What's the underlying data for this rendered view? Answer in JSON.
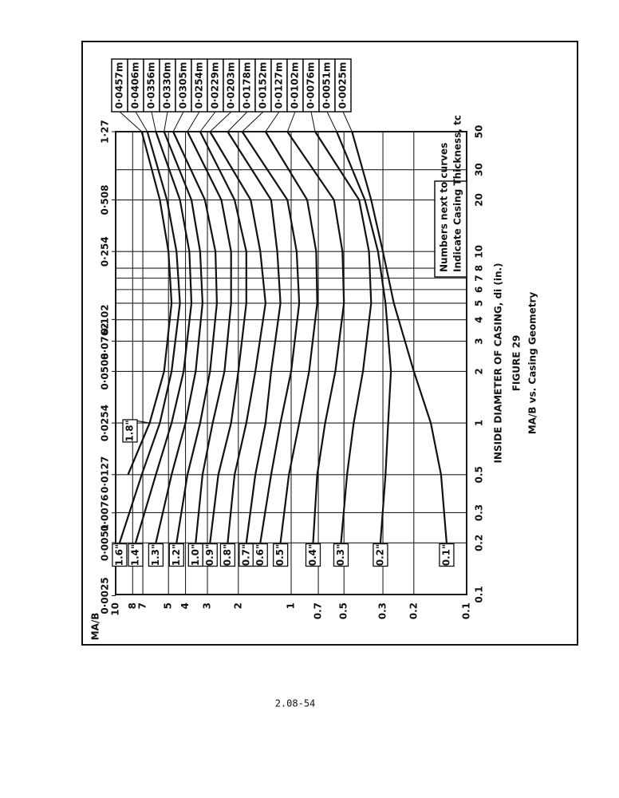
{
  "page_number": "2.08-54",
  "chart_data": {
    "type": "line",
    "title": "FIGURE 29",
    "subtitle": "MA/B vs. Casing Geometry",
    "x_label": "INSIDE DIAMETER OF CASING, di (in.)",
    "y_label": "MA/B",
    "annotation": [
      "Numbers next to curves",
      "Indicate Casing Thickness, tc"
    ],
    "log_x": true,
    "log_y": true,
    "grid": true,
    "color": "#111111",
    "x": [
      0.2,
      0.5,
      1,
      2,
      5,
      10,
      20,
      50
    ],
    "xlim": [
      0.1,
      50
    ],
    "xticks": [
      0.1,
      0.2,
      0.3,
      0.5,
      1,
      2,
      3,
      4,
      5,
      6,
      7,
      8,
      10,
      20,
      30,
      50
    ],
    "x2lim": [
      0.00254,
      1.27
    ],
    "x2ticks": [
      {
        "value": 0.0025,
        "label": "0·0025"
      },
      {
        "value": 0.0051,
        "label": "0·0051"
      },
      {
        "value": 0.0076,
        "label": "0·0076"
      },
      {
        "value": 0.0127,
        "label": "0·0127"
      },
      {
        "value": 0.0254,
        "label": "0·0254"
      },
      {
        "value": 0.0508,
        "label": "0·0508"
      },
      {
        "value": 0.0762,
        "label": "0·0762"
      },
      {
        "value": 0.102,
        "label": "0·102"
      },
      {
        "value": 0.254,
        "label": "0·254"
      },
      {
        "value": 0.508,
        "label": "0·508"
      },
      {
        "value": 1.27,
        "label": "1·27"
      }
    ],
    "ylim": [
      0.1,
      10
    ],
    "yticks": [
      0.1,
      0.2,
      0.3,
      0.5,
      0.7,
      1,
      2,
      3,
      4,
      5,
      7,
      8,
      10
    ],
    "series": [
      {
        "name": "1.8\"",
        "metric": "0·0457m",
        "values": [
          null,
          8.5,
          6.4,
          5.3,
          4.8,
          5.0,
          5.6,
          7.1
        ]
      },
      {
        "name": "1.6\"",
        "metric": "0·0406m",
        "values": [
          9.5,
          7.1,
          5.6,
          4.8,
          4.3,
          4.5,
          5.1,
          6.6
        ]
      },
      {
        "name": "1.4\"",
        "metric": "0·0356m",
        "values": [
          7.7,
          5.9,
          4.8,
          4.1,
          3.7,
          3.8,
          4.3,
          5.9
        ]
      },
      {
        "name": "1.3\"",
        "metric": "0·0330m",
        "values": [
          5.9,
          4.8,
          4.0,
          3.5,
          3.2,
          3.3,
          3.7,
          5.3
        ]
      },
      {
        "name": "1.2\"",
        "metric": "0·0305m",
        "values": [
          4.5,
          3.9,
          3.3,
          2.9,
          2.65,
          2.7,
          3.1,
          4.7
        ]
      },
      {
        "name": "1.0\"",
        "metric": "0·0254m",
        "values": [
          3.5,
          3.2,
          2.8,
          2.4,
          2.2,
          2.2,
          2.5,
          3.9
        ]
      },
      {
        "name": "0.9\"",
        "metric": "0·0229m",
        "values": [
          2.9,
          2.6,
          2.2,
          2.0,
          1.8,
          1.8,
          2.1,
          3.3
        ]
      },
      {
        "name": "0.8\"",
        "metric": "0·0203m",
        "values": [
          2.3,
          2.1,
          1.8,
          1.6,
          1.4,
          1.5,
          1.7,
          2.9
        ]
      },
      {
        "name": "0.7\"",
        "metric": "0·0178m",
        "values": [
          1.8,
          1.6,
          1.4,
          1.3,
          1.15,
          1.2,
          1.3,
          2.3
        ]
      },
      {
        "name": "0.6\"",
        "metric": "0·0152m",
        "values": [
          1.5,
          1.3,
          1.15,
          1.0,
          0.9,
          0.93,
          1.05,
          1.9
        ]
      },
      {
        "name": "0.5\"",
        "metric": "0·0127m",
        "values": [
          1.15,
          1.03,
          0.9,
          0.79,
          0.71,
          0.72,
          0.81,
          1.4
        ]
      },
      {
        "name": "0.4\"",
        "metric": "0·0102m",
        "values": [
          0.75,
          0.71,
          0.64,
          0.56,
          0.5,
          0.51,
          0.57,
          1.05
        ]
      },
      {
        "name": "0.3\"",
        "metric": "0·0076m",
        "values": [
          0.52,
          0.48,
          0.44,
          0.39,
          0.35,
          0.36,
          0.41,
          0.73
        ]
      },
      {
        "name": "0.2\"",
        "metric": "0·0051m",
        "values": [
          0.31,
          0.29,
          0.28,
          0.27,
          0.29,
          0.32,
          0.38,
          0.55
        ]
      },
      {
        "name": "0.1\"",
        "metric": "0·0025m",
        "values": [
          0.13,
          0.14,
          0.16,
          0.2,
          0.26,
          0.3,
          0.35,
          0.45
        ]
      }
    ]
  }
}
